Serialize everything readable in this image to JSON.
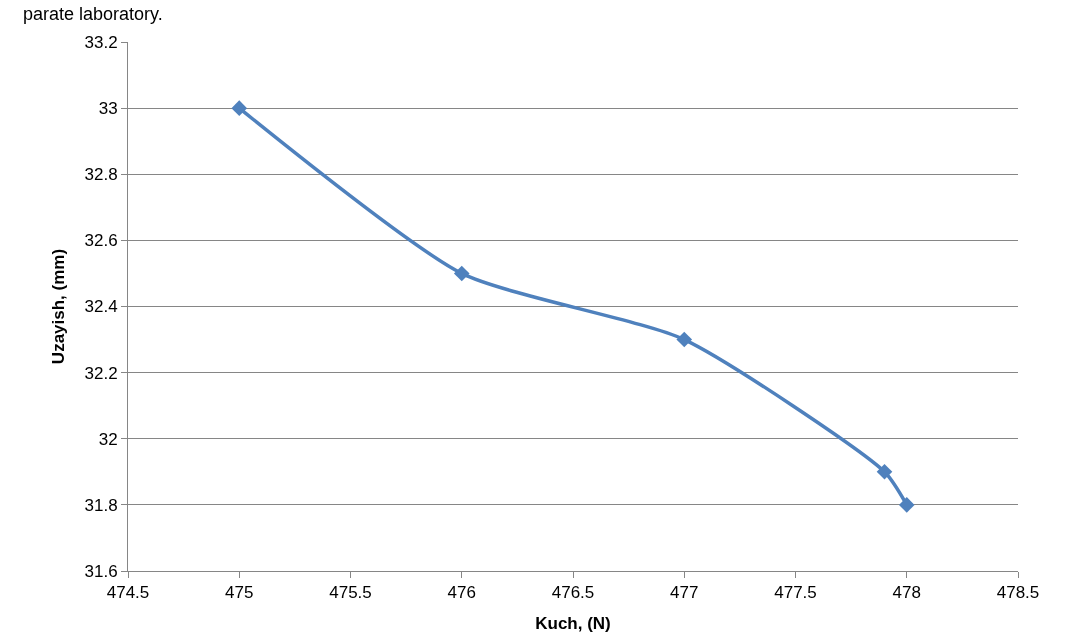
{
  "chart_data": {
    "type": "line",
    "xlabel": "Kuch, (N)",
    "ylabel": "Uzayish, (mm)",
    "annotations": [
      "parate laboratory."
    ],
    "x": [
      475,
      476,
      477,
      477.9,
      478
    ],
    "series": [
      {
        "color": "#4f81bd",
        "values": [
          33,
          32.5,
          32.3,
          31.9,
          31.8
        ]
      }
    ],
    "xlim": [
      474.5,
      478.5
    ],
    "xticks": [
      474.5,
      475,
      475.5,
      476,
      476.5,
      477,
      477.5,
      478,
      478.5
    ],
    "ylim": [
      31.6,
      33.2
    ],
    "yticks": [
      31.6,
      31.8,
      32,
      32.2,
      32.4,
      32.6,
      32.8,
      33,
      33.2
    ],
    "grid": "y",
    "marker": "diamond",
    "line_style": "solid",
    "legend": false
  }
}
